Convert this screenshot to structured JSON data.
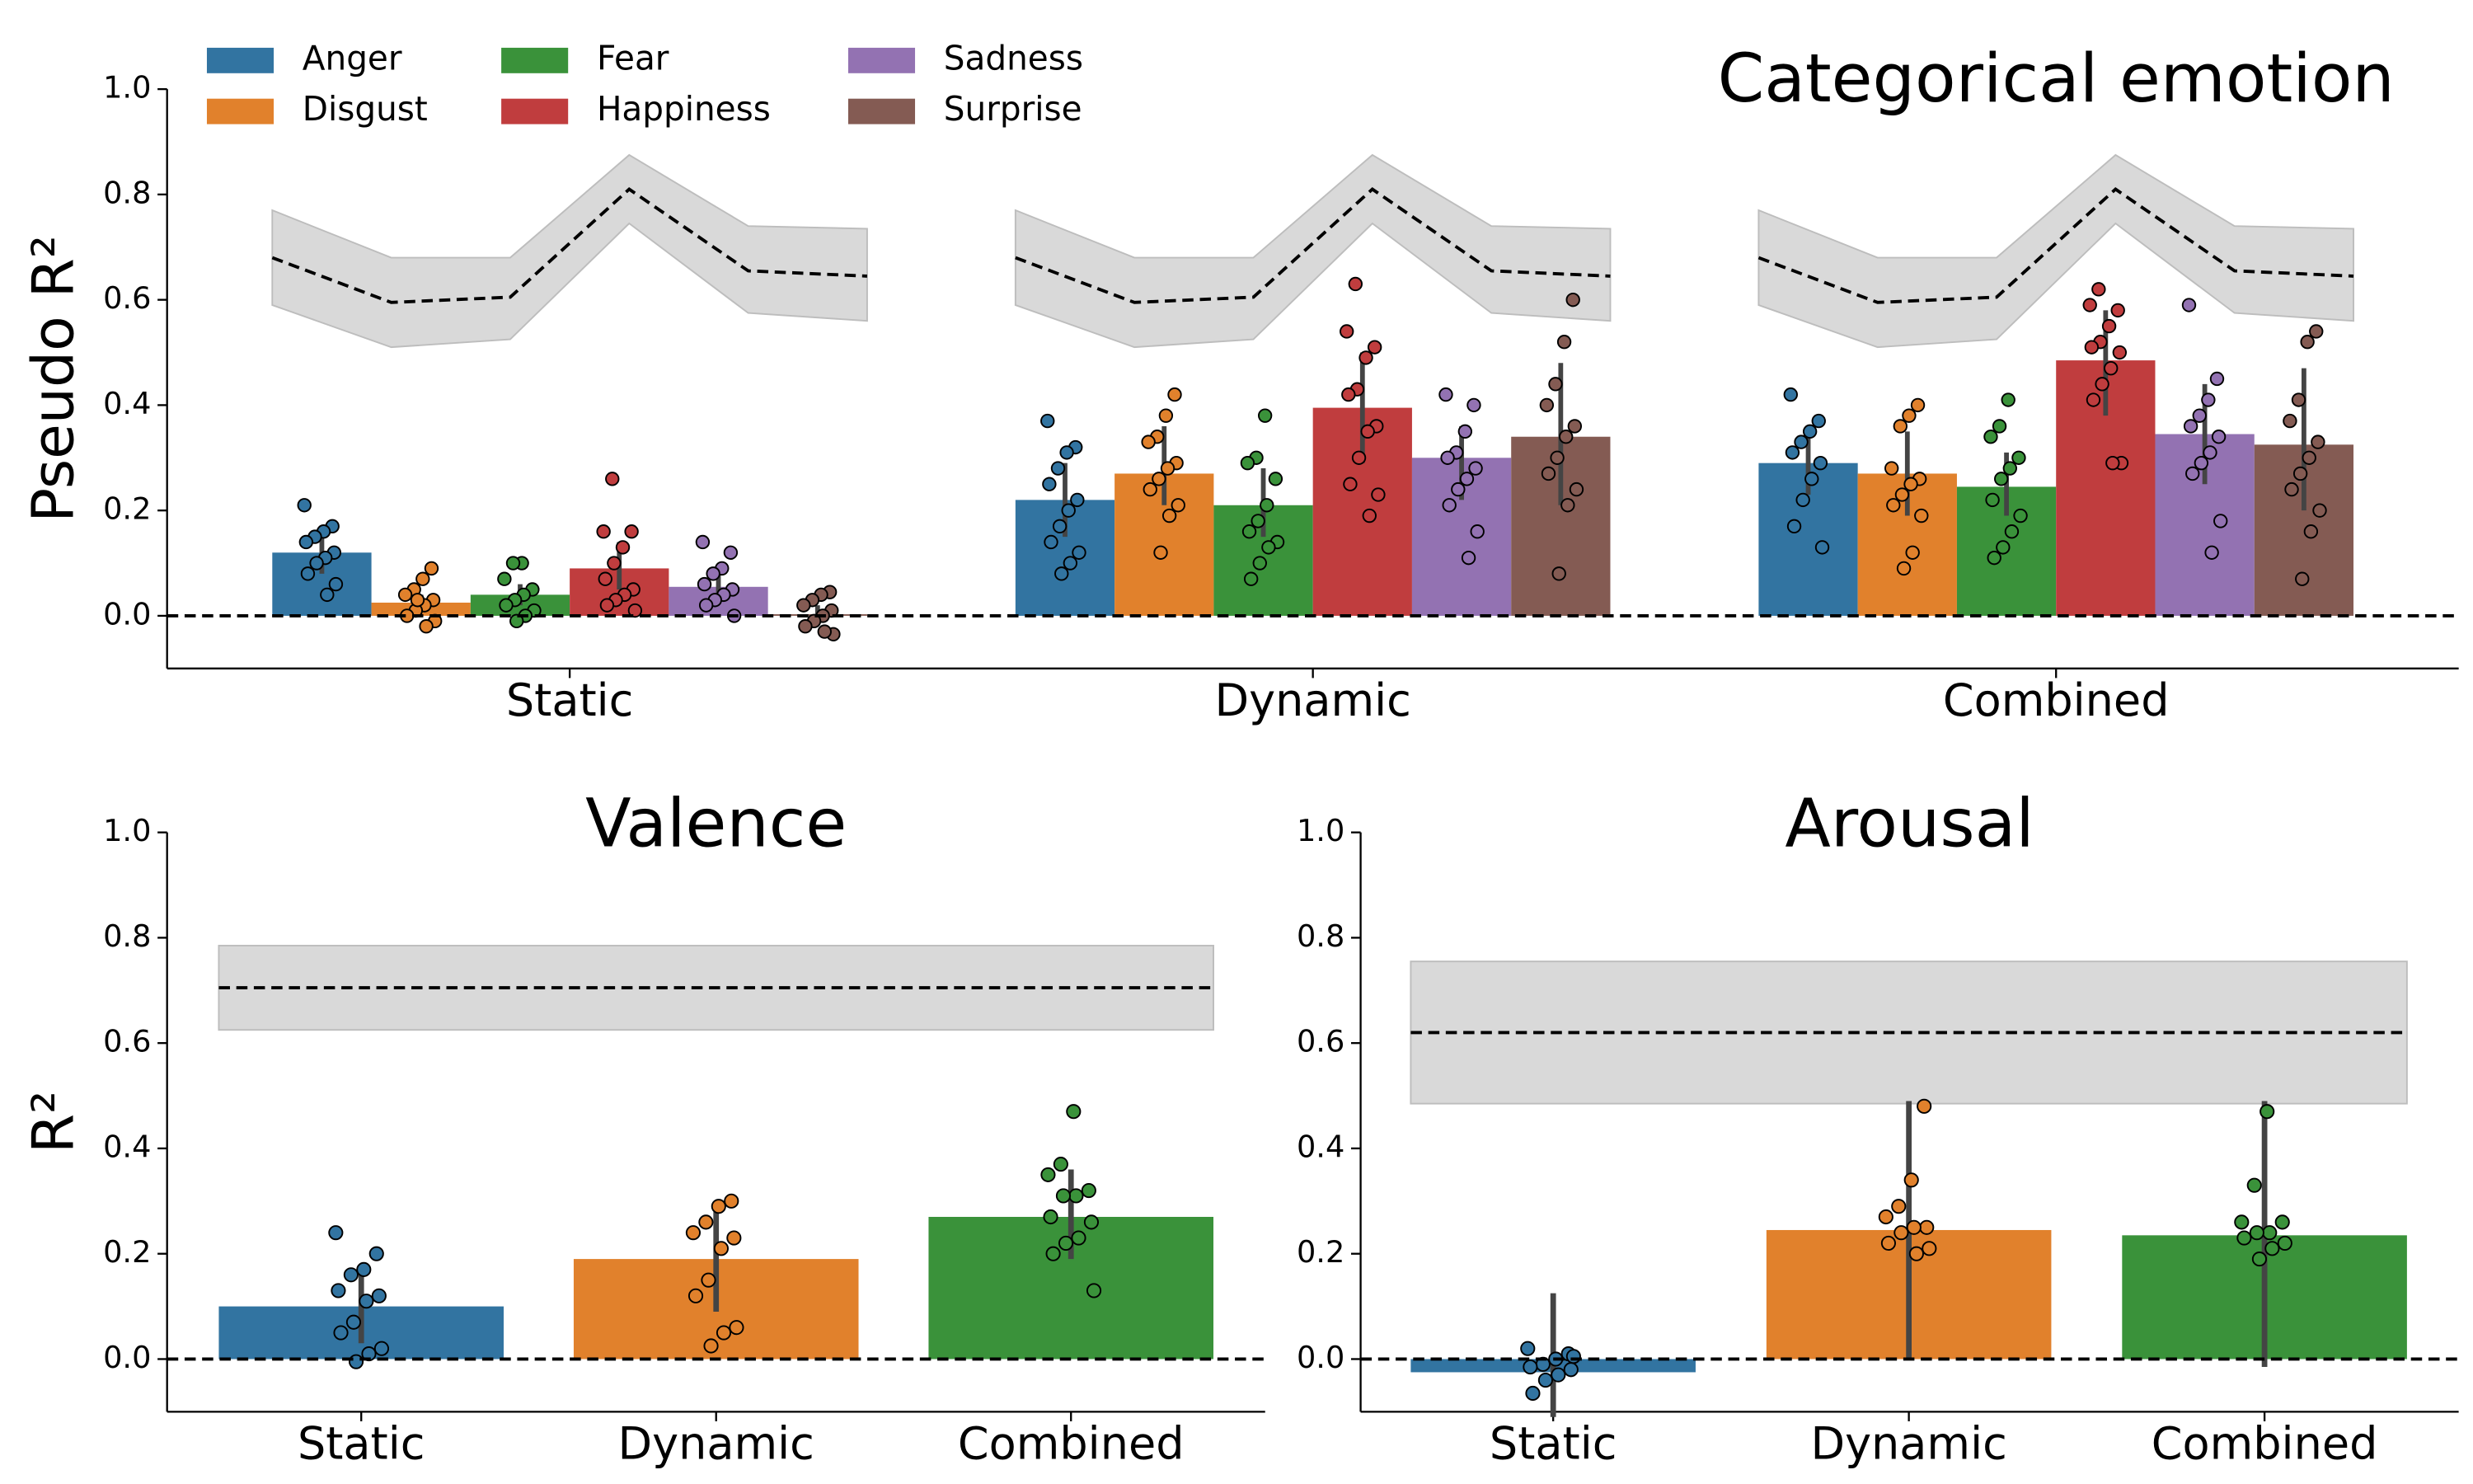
{
  "chart_data": [
    {
      "type": "grouped_bar",
      "title": "Categorical emotion",
      "y_label": "Pseudo R²",
      "categories": [
        "Static",
        "Dynamic",
        "Combined"
      ],
      "ylim": [
        -0.1,
        1.0
      ],
      "yticks": [
        {
          "value": 0,
          "label": "0.0"
        },
        0.2,
        0.4,
        0.6,
        0.8,
        {
          "value": 1,
          "label": "1.0"
        }
      ],
      "legend": "upper left",
      "series": [
        {
          "name": "Anger",
          "color": "#3274a1",
          "values": [
            0.12,
            0.22,
            0.29
          ],
          "errors": [
            [
              0.08,
              0.16
            ],
            [
              0.15,
              0.29
            ],
            [
              0.23,
              0.35
            ]
          ],
          "points": [
            [
              0.21,
              0.17,
              0.16,
              0.15,
              0.14,
              0.12,
              0.11,
              0.1,
              0.08,
              0.06,
              0.04
            ],
            [
              0.37,
              0.32,
              0.31,
              0.28,
              0.25,
              0.22,
              0.2,
              0.17,
              0.14,
              0.12,
              0.1,
              0.08
            ],
            [
              0.42,
              0.37,
              0.35,
              0.33,
              0.31,
              0.29,
              0.26,
              0.22,
              0.17,
              0.13
            ]
          ]
        },
        {
          "name": "Disgust",
          "color": "#e1812c",
          "values": [
            0.025,
            0.27,
            0.27
          ],
          "errors": [
            [
              0.01,
              0.04
            ],
            [
              0.21,
              0.36
            ],
            [
              0.19,
              0.35
            ]
          ],
          "points": [
            [
              0.09,
              0.07,
              0.05,
              0.04,
              0.03,
              0.02,
              0.01,
              0.0,
              -0.01,
              -0.02,
              0.03
            ],
            [
              0.42,
              0.38,
              0.34,
              0.33,
              0.29,
              0.28,
              0.26,
              0.24,
              0.21,
              0.19,
              0.12
            ],
            [
              0.4,
              0.38,
              0.36,
              0.28,
              0.26,
              0.25,
              0.23,
              0.21,
              0.19,
              0.12,
              0.09
            ]
          ]
        },
        {
          "name": "Fear",
          "color": "#3a923a",
          "values": [
            0.04,
            0.21,
            0.245
          ],
          "errors": [
            [
              0.02,
              0.06
            ],
            [
              0.15,
              0.28
            ],
            [
              0.19,
              0.31
            ]
          ],
          "points": [
            [
              0.1,
              0.1,
              0.07,
              0.05,
              0.04,
              0.03,
              0.02,
              0.01,
              0.0,
              -0.01
            ],
            [
              0.38,
              0.3,
              0.29,
              0.26,
              0.21,
              0.18,
              0.16,
              0.14,
              0.13,
              0.1,
              0.07
            ],
            [
              0.41,
              0.36,
              0.34,
              0.3,
              0.28,
              0.26,
              0.22,
              0.19,
              0.16,
              0.13,
              0.11
            ]
          ]
        },
        {
          "name": "Happiness",
          "color": "#c03d3e",
          "values": [
            0.09,
            0.395,
            0.485
          ],
          "errors": [
            [
              0.05,
              0.14
            ],
            [
              0.29,
              0.5
            ],
            [
              0.38,
              0.58
            ]
          ],
          "points": [
            [
              0.26,
              0.16,
              0.16,
              0.13,
              0.1,
              0.07,
              0.05,
              0.04,
              0.03,
              0.02,
              0.01
            ],
            [
              0.63,
              0.54,
              0.51,
              0.49,
              0.43,
              0.42,
              0.36,
              0.35,
              0.3,
              0.25,
              0.23,
              0.19
            ],
            [
              0.62,
              0.59,
              0.58,
              0.55,
              0.52,
              0.51,
              0.5,
              0.47,
              0.44,
              0.41,
              0.29,
              0.29
            ]
          ]
        },
        {
          "name": "Sadness",
          "color": "#9372b2",
          "values": [
            0.055,
            0.3,
            0.345
          ],
          "errors": [
            [
              0.03,
              0.09
            ],
            [
              0.22,
              0.36
            ],
            [
              0.25,
              0.44
            ]
          ],
          "points": [
            [
              0.14,
              0.12,
              0.09,
              0.08,
              0.06,
              0.05,
              0.04,
              0.03,
              0.02,
              0.0
            ],
            [
              0.42,
              0.4,
              0.35,
              0.31,
              0.3,
              0.28,
              0.26,
              0.24,
              0.21,
              0.16,
              0.11
            ],
            [
              0.59,
              0.45,
              0.41,
              0.38,
              0.36,
              0.34,
              0.31,
              0.29,
              0.27,
              0.18,
              0.12
            ]
          ]
        },
        {
          "name": "Surprise",
          "color": "#845b53",
          "values": [
            0.003,
            0.34,
            0.325
          ],
          "errors": [
            [
              -0.01,
              0.02
            ],
            [
              0.21,
              0.48
            ],
            [
              0.2,
              0.47
            ]
          ],
          "points": [
            [
              0.045,
              0.04,
              0.03,
              0.02,
              0.01,
              0.0,
              -0.01,
              -0.02,
              -0.035,
              -0.03
            ],
            [
              0.6,
              0.52,
              0.44,
              0.4,
              0.36,
              0.34,
              0.3,
              0.27,
              0.24,
              0.21,
              0.08
            ],
            [
              0.54,
              0.52,
              0.41,
              0.37,
              0.33,
              0.3,
              0.27,
              0.24,
              0.2,
              0.16,
              0.07
            ]
          ]
        }
      ],
      "ceiling": {
        "values": [
          0.68,
          0.595,
          0.605,
          0.81,
          0.655,
          0.645
        ],
        "lower": [
          0.59,
          0.51,
          0.525,
          0.745,
          0.575,
          0.56
        ],
        "upper": [
          0.77,
          0.68,
          0.68,
          0.875,
          0.74,
          0.735
        ]
      }
    },
    {
      "type": "bar",
      "title": "Valence",
      "y_label": "R²",
      "categories": [
        "Static",
        "Dynamic",
        "Combined"
      ],
      "values": [
        0.1,
        0.19,
        0.27
      ],
      "colors": [
        "#3274a1",
        "#e1812c",
        "#3a923a"
      ],
      "errors": [
        [
          0.03,
          0.18
        ],
        [
          0.09,
          0.28
        ],
        [
          0.19,
          0.36
        ]
      ],
      "points": [
        [
          0.24,
          0.2,
          0.17,
          0.16,
          0.13,
          0.12,
          0.11,
          0.07,
          0.05,
          0.02,
          0.01,
          -0.005
        ],
        [
          0.3,
          0.29,
          0.26,
          0.24,
          0.23,
          0.21,
          0.15,
          0.12,
          0.06,
          0.05,
          0.025
        ],
        [
          0.47,
          0.37,
          0.35,
          0.32,
          0.31,
          0.31,
          0.27,
          0.26,
          0.23,
          0.22,
          0.2,
          0.13
        ]
      ],
      "ceiling": {
        "value": 0.705,
        "lower": 0.625,
        "upper": 0.785
      },
      "ylim": [
        -0.1,
        1.0
      ],
      "yticks": [
        {
          "value": 0,
          "label": "0.0"
        },
        0.2,
        0.4,
        0.6,
        0.8,
        {
          "value": 1,
          "label": "1.0"
        }
      ]
    },
    {
      "type": "bar",
      "title": "Arousal",
      "categories": [
        "Static",
        "Dynamic",
        "Combined"
      ],
      "values": [
        -0.025,
        0.245,
        0.235
      ],
      "colors": [
        "#3274a1",
        "#e1812c",
        "#3a923a"
      ],
      "errors": [
        [
          -0.11,
          0.125
        ],
        [
          0.0,
          0.49
        ],
        [
          -0.015,
          0.49
        ]
      ],
      "points": [
        [
          0.02,
          0.01,
          0.0,
          -0.01,
          -0.015,
          -0.02,
          -0.03,
          -0.04,
          -0.065,
          0.005
        ],
        [
          0.48,
          0.34,
          0.29,
          0.27,
          0.25,
          0.25,
          0.24,
          0.22,
          0.21,
          0.2
        ],
        [
          0.47,
          0.33,
          0.26,
          0.26,
          0.24,
          0.24,
          0.23,
          0.22,
          0.21,
          0.19
        ]
      ],
      "ceiling": {
        "value": 0.62,
        "lower": 0.485,
        "upper": 0.755
      },
      "ylim": [
        -0.1,
        1.0
      ],
      "yticks": [
        {
          "value": 0,
          "label": "0.0"
        },
        0.2,
        0.4,
        0.6,
        0.8,
        {
          "value": 1,
          "label": "1.0"
        }
      ]
    }
  ]
}
